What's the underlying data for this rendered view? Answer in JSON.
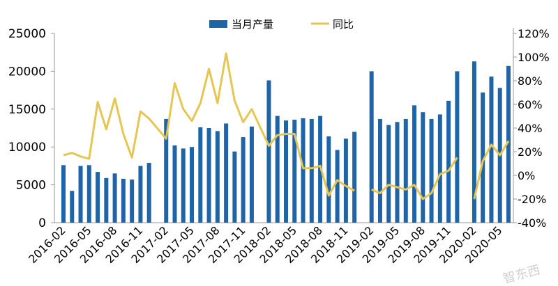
{
  "chart_data": {
    "type": "bar+line",
    "title": "",
    "legend": {
      "placement": "top-center",
      "entries": [
        {
          "name": "当月产量",
          "kind": "bar",
          "color": "#1f64a6"
        },
        {
          "name": "同比",
          "kind": "line",
          "color": "#e5c654"
        }
      ]
    },
    "left_axis": {
      "ylim": [
        0,
        25000
      ],
      "ticks": [
        "0",
        "5000",
        "10000",
        "15000",
        "20000",
        "25000"
      ]
    },
    "right_axis": {
      "ylim": [
        -40,
        120
      ],
      "unit": "%",
      "ticks": [
        "-40%",
        "-20%",
        "0%",
        "20%",
        "40%",
        "60%",
        "80%",
        "100%",
        "120%"
      ]
    },
    "x_tick_labels": [
      "2016-02",
      "2016-05",
      "2016-08",
      "2016-11",
      "2017-02",
      "2017-05",
      "2017-08",
      "2017-11",
      "2018-02",
      "2018-05",
      "2018-08",
      "2018-11",
      "2019-02",
      "2019-05",
      "2019-08",
      "2019-11",
      "2020-02",
      "2020-05"
    ],
    "categories": [
      "2016-02",
      "2016-03",
      "2016-04",
      "2016-05",
      "2016-06",
      "2016-07",
      "2016-08",
      "2016-09",
      "2016-10",
      "2016-11",
      "2016-12",
      "2017-01",
      "2017-02",
      "2017-03",
      "2017-04",
      "2017-05",
      "2017-06",
      "2017-07",
      "2017-08",
      "2017-09",
      "2017-10",
      "2017-11",
      "2017-12",
      "2018-01",
      "2018-02",
      "2018-03",
      "2018-04",
      "2018-05",
      "2018-06",
      "2018-07",
      "2018-08",
      "2018-09",
      "2018-10",
      "2018-11",
      "2018-12",
      "2019-01",
      "2019-02",
      "2019-03",
      "2019-04",
      "2019-05",
      "2019-06",
      "2019-07",
      "2019-08",
      "2019-09",
      "2019-10",
      "2019-11",
      "2019-12",
      "2020-01",
      "2020-02",
      "2020-03",
      "2020-04",
      "2020-05",
      "2020-06"
    ],
    "series": [
      {
        "name": "当月产量",
        "axis": "left",
        "values": [
          7600,
          4200,
          7500,
          7600,
          6700,
          5900,
          6500,
          5800,
          5700,
          7500,
          7900,
          null,
          13700,
          10200,
          9800,
          10000,
          12600,
          12500,
          12100,
          13100,
          9400,
          11300,
          12700,
          null,
          18800,
          14100,
          13500,
          13600,
          13800,
          13700,
          14100,
          11400,
          9600,
          11100,
          12000,
          null,
          20000,
          13700,
          12900,
          13300,
          13700,
          15500,
          14600,
          13700,
          14300,
          16100,
          20000,
          null,
          21300,
          17200,
          19300,
          17800,
          20700
        ]
      },
      {
        "name": "同比",
        "axis": "right",
        "values": [
          17,
          19,
          16,
          14,
          62,
          39,
          65,
          35,
          15,
          54,
          48,
          null,
          31,
          78,
          56,
          46,
          61,
          90,
          61,
          103,
          63,
          45,
          56,
          null,
          25,
          34,
          35,
          35,
          6,
          6,
          8,
          -17,
          -4,
          -9,
          -13,
          null,
          -12,
          -15,
          -8,
          -10,
          -12,
          -8,
          -20,
          -15,
          1,
          4,
          15,
          null,
          -20,
          12,
          26,
          17,
          29
        ]
      }
    ],
    "line_connected_across": [
      "2017-01",
      "2018-01"
    ],
    "grid": false
  },
  "watermark": "智东西"
}
